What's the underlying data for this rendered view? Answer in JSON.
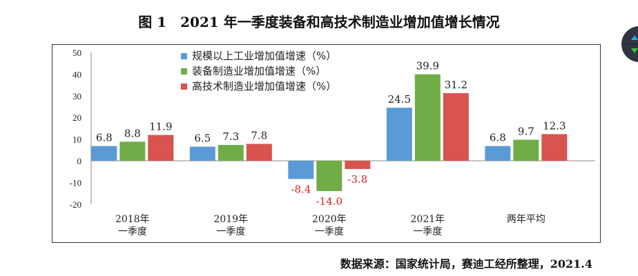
{
  "title": "图 1　2021 年一季度装备和高技术制造业增加值增长情况",
  "source": "数据来源：国家统计局，赛迪工经所整理，2021.4",
  "chart_data": {
    "type": "bar",
    "categories": [
      "2018年\n一季度",
      "2019年\n一季度",
      "2020年\n一季度",
      "2021年\n一季度",
      "两年平均"
    ],
    "series": [
      {
        "name": "规模以上工业增加值增速（%）",
        "color": "#5b9bd5",
        "values": [
          6.8,
          6.5,
          -8.4,
          24.5,
          6.8
        ]
      },
      {
        "name": "装备制造业增加值增速（%）",
        "color": "#70ad47",
        "values": [
          8.8,
          7.3,
          -14.0,
          39.9,
          9.7
        ]
      },
      {
        "name": "高技术制造业增加值增速（%）",
        "color": "#d9534f",
        "values": [
          11.9,
          7.8,
          -3.8,
          31.2,
          12.3
        ]
      }
    ],
    "ylim": [
      -20,
      50
    ],
    "yticks": [
      -20,
      -10,
      0,
      10,
      20,
      30,
      40,
      50
    ],
    "negative_label_color": "#e02020",
    "legend": "top-left",
    "grid": false
  }
}
